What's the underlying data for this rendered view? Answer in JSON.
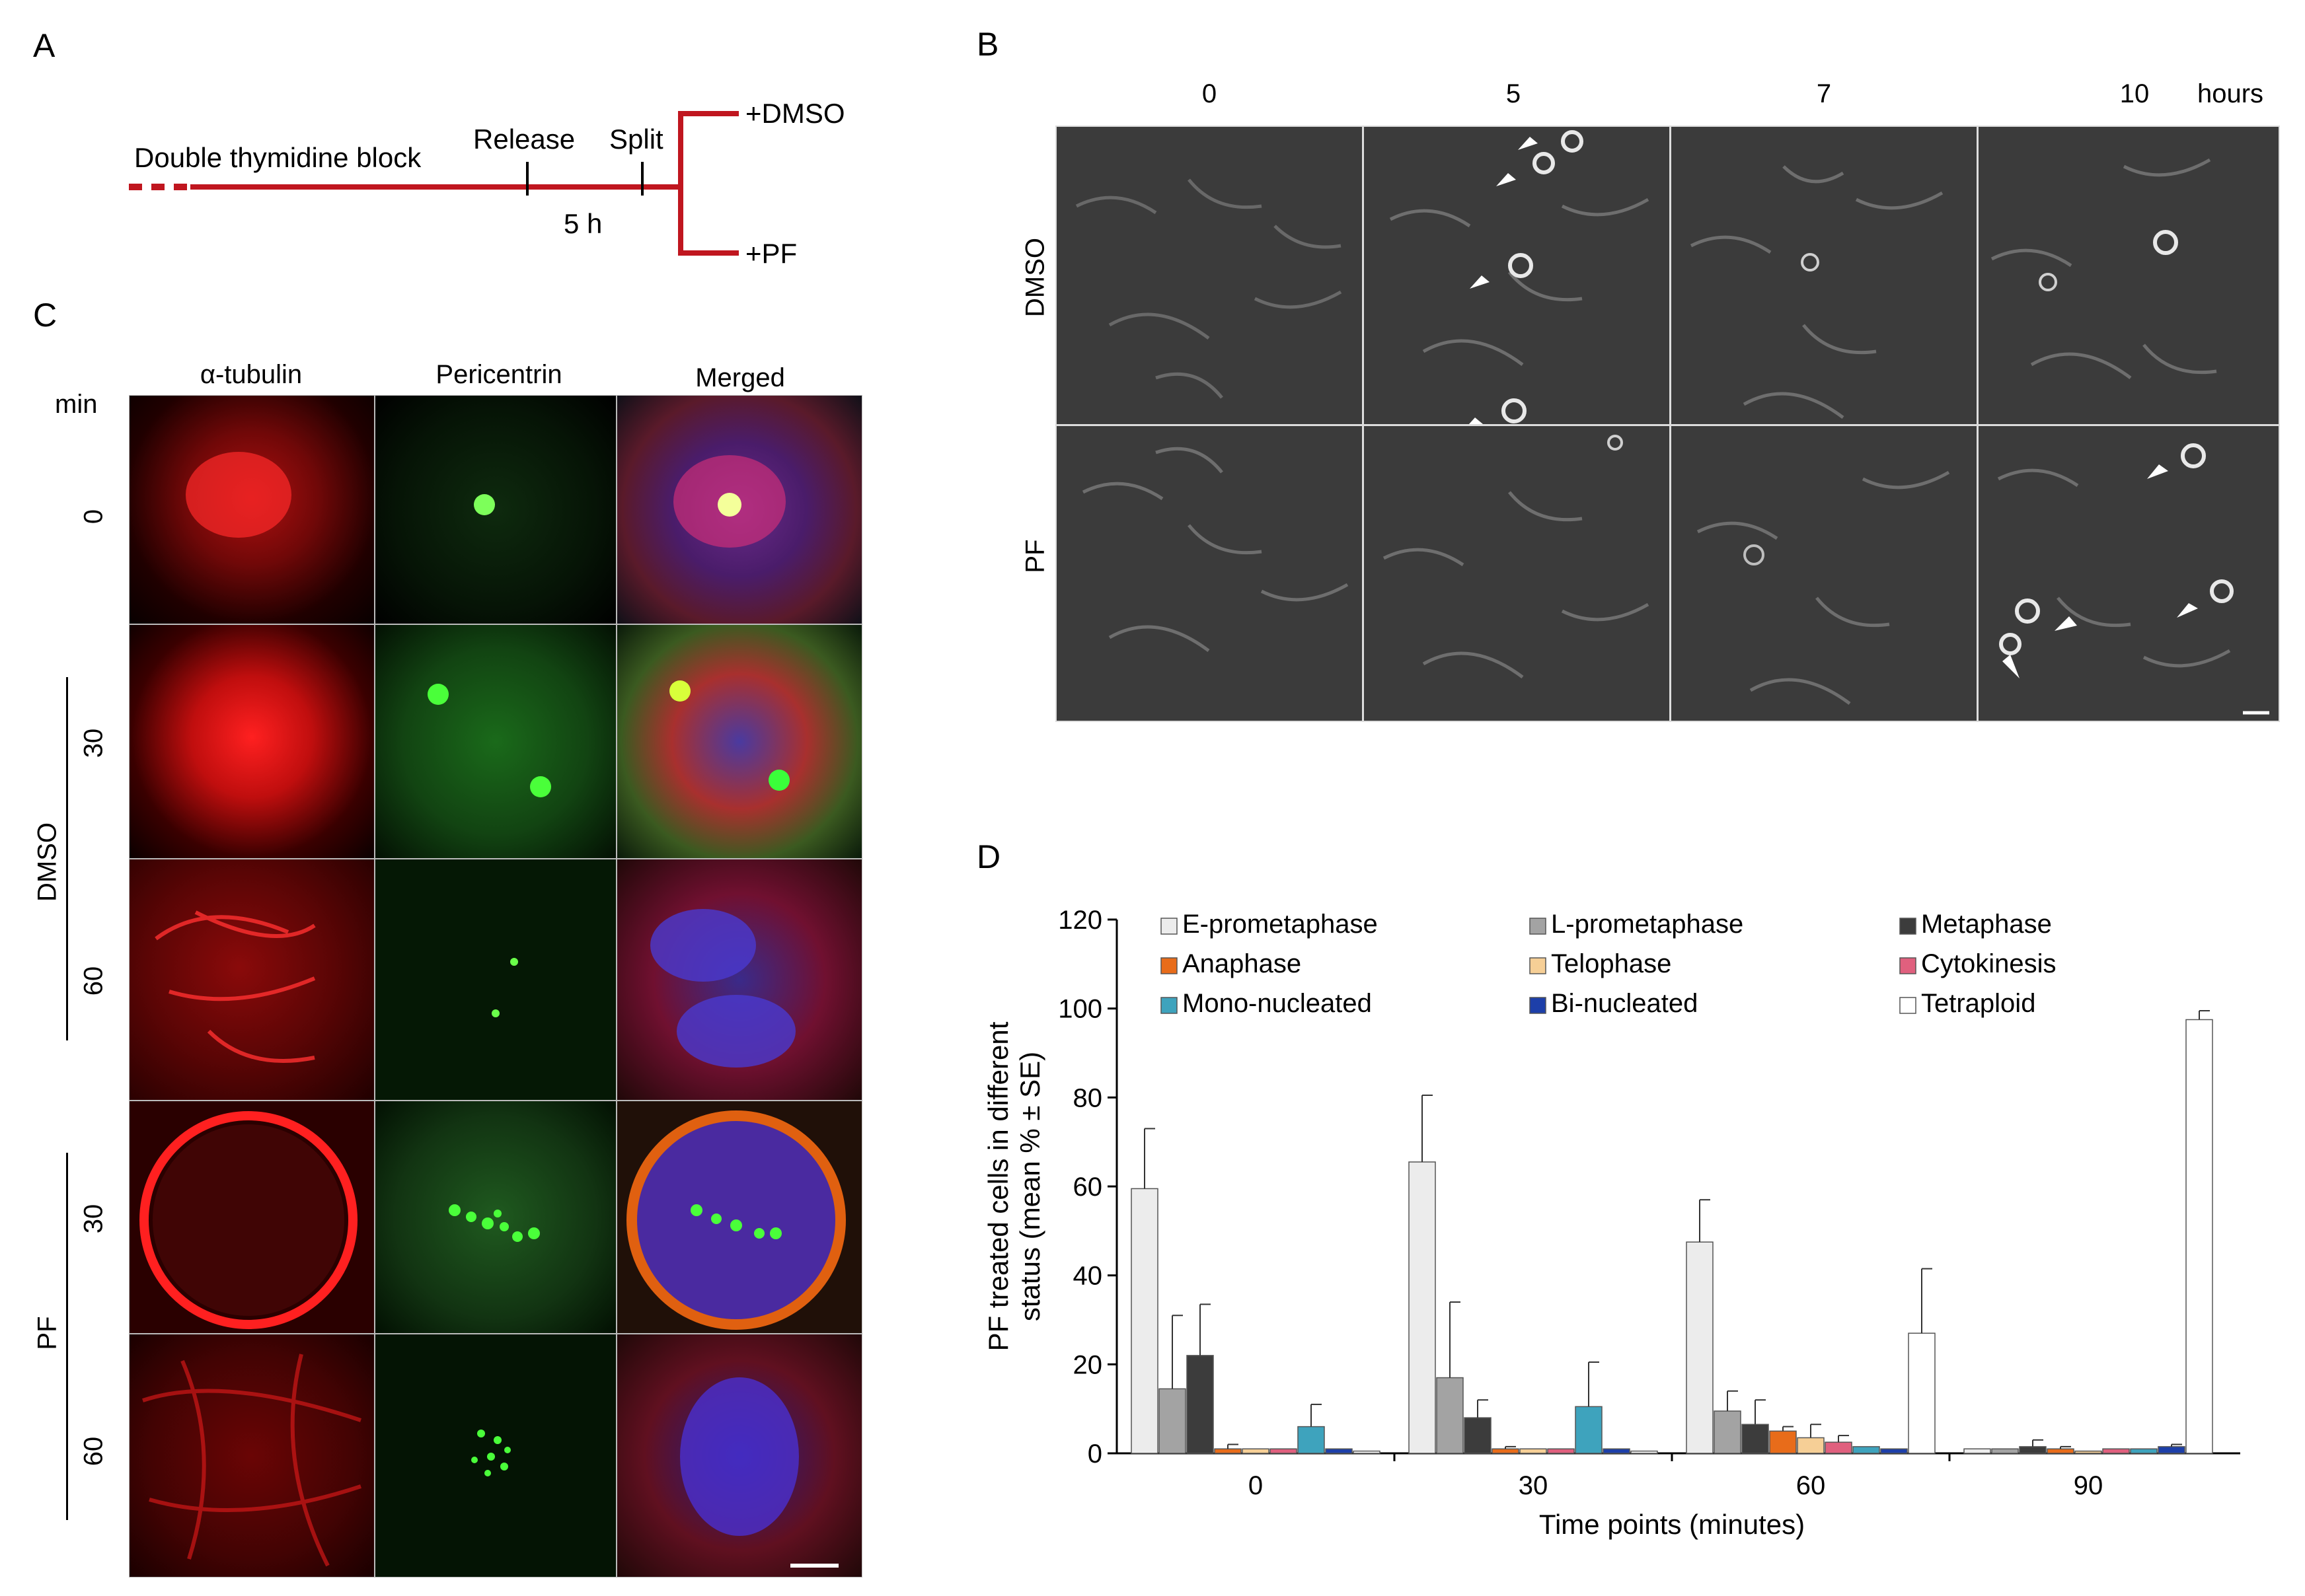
{
  "panel_labels": {
    "a": "A",
    "b": "B",
    "c": "C",
    "d": "D"
  },
  "panel_a": {
    "block_label": "Double thymidine block",
    "release_label": "Release",
    "split_label": "Split",
    "duration_label": "5 h",
    "branch_top": "+DMSO",
    "branch_bottom": "+PF",
    "line_color": "#c0161f"
  },
  "panel_b": {
    "time_headers": [
      "0",
      "5",
      "7",
      "10"
    ],
    "time_unit": "hours",
    "rows": [
      "DMSO",
      "PF"
    ]
  },
  "panel_c": {
    "columns": [
      "α-tubulin",
      "Pericentrin",
      "Merged"
    ],
    "unit_label": "min",
    "row_times": [
      "0",
      "30",
      "60",
      "30",
      "60"
    ],
    "groups": [
      "DMSO",
      "PF"
    ]
  },
  "chart_data": {
    "type": "bar",
    "ylabel_line1": "PF treated cells in different",
    "ylabel_line2": "status (mean % ± SE)",
    "xlabel": "Time points (minutes)",
    "ylim": [
      0,
      120
    ],
    "yticks": [
      "0",
      "20",
      "40",
      "60",
      "80",
      "100",
      "120"
    ],
    "categories": [
      "0",
      "30",
      "60",
      "90"
    ],
    "series": [
      {
        "name": "E-prometaphase",
        "color": "#ececec",
        "values": [
          59.5,
          65.5,
          47.5,
          1
        ],
        "errors": [
          13.5,
          15,
          9.5,
          0
        ]
      },
      {
        "name": "L-prometaphase",
        "color": "#a3a3a3",
        "values": [
          14.5,
          17,
          9.5,
          1
        ],
        "errors": [
          16.5,
          17,
          4.5,
          0
        ]
      },
      {
        "name": "Metaphase",
        "color": "#3c3c3c",
        "values": [
          22,
          8,
          6.5,
          1.5
        ],
        "errors": [
          11.5,
          4,
          5.5,
          1.5
        ]
      },
      {
        "name": "Anaphase",
        "color": "#e86c1a",
        "values": [
          1,
          1,
          5,
          1
        ],
        "errors": [
          1,
          0.5,
          1,
          0.5
        ]
      },
      {
        "name": "Telophase",
        "color": "#f6cf96",
        "values": [
          1,
          1,
          3.5,
          0.5
        ],
        "errors": [
          0,
          0,
          3,
          0
        ]
      },
      {
        "name": "Cytokinesis",
        "color": "#e0607e",
        "values": [
          1,
          1,
          2.5,
          1
        ],
        "errors": [
          0,
          0,
          1.5,
          0
        ]
      },
      {
        "name": "Mono-nucleated",
        "color": "#3ea3bd",
        "values": [
          6,
          10.5,
          1.5,
          1
        ],
        "errors": [
          5,
          10,
          0,
          0
        ]
      },
      {
        "name": "Bi-nucleated",
        "color": "#1d3fa9",
        "values": [
          1,
          1,
          1,
          1.5
        ],
        "errors": [
          0,
          0,
          0,
          0.5
        ]
      },
      {
        "name": "Tetraploid",
        "color": "#ffffff",
        "values": [
          0.5,
          0.5,
          27,
          97.5
        ],
        "errors": [
          0,
          0,
          14.5,
          2
        ]
      }
    ]
  }
}
